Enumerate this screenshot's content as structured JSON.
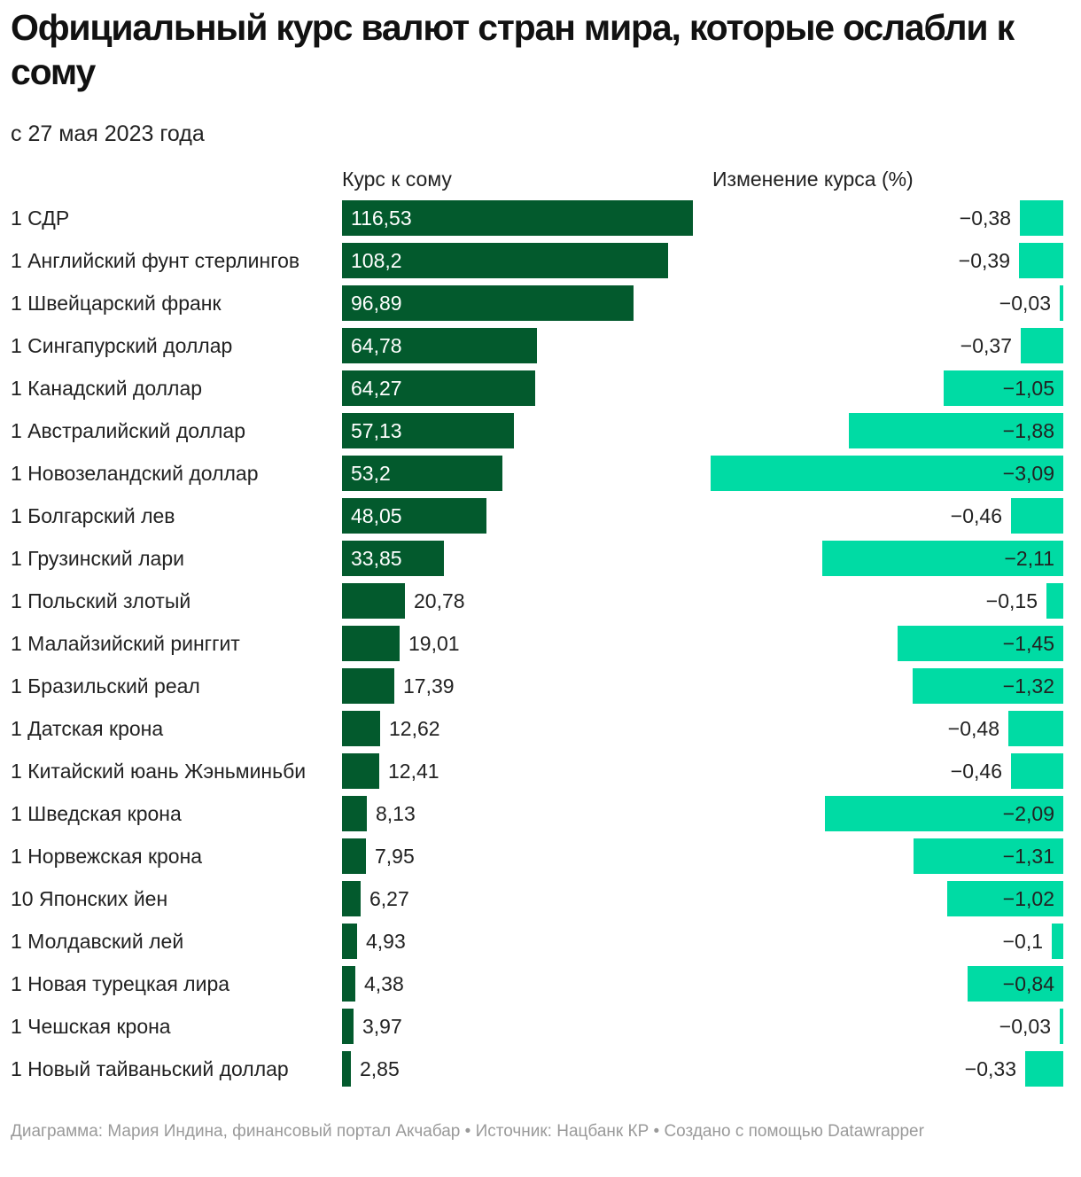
{
  "title": "Официальный курс валют стран мира, которые ослабли к сому",
  "subtitle": "с 27 мая 2023 года",
  "footer": "Диаграмма: Мария Индина, финансовый портал Акчабар • Источник: Нацбанк КР • Создано с помощью Datawrapper",
  "colors": {
    "rate_bar": "#035a2d",
    "change_bar": "#00dba4"
  },
  "chart_data": {
    "type": "bar",
    "orientation": "horizontal",
    "columns": [
      "Курс к сому",
      "Изменение курса (%)"
    ],
    "categories": [
      "1 СДР",
      "1 Английский фунт стерлингов",
      "1 Швейцарский франк",
      "1 Сингапурский доллар",
      "1 Канадский доллар",
      "1 Австралийский доллар",
      "1 Новозеландский доллар",
      "1 Болгарский лев",
      "1 Грузинский лари",
      "1 Польский злотый",
      "1 Малайзийский ринггит",
      "1 Бразильский реал",
      "1 Датская крона",
      "1 Китайский юань Жэньминьби",
      "1 Шведская крона",
      "1 Норвежская крона",
      "10 Японских йен",
      "1 Молдавский лей",
      "1 Новая турецкая лира",
      "1 Чешская крона",
      "1 Новый тайваньский доллар"
    ],
    "series": [
      {
        "name": "Курс к сому",
        "values": [
          116.53,
          108.2,
          96.89,
          64.78,
          64.27,
          57.13,
          53.2,
          48.05,
          33.85,
          20.78,
          19.01,
          17.39,
          12.62,
          12.41,
          8.13,
          7.95,
          6.27,
          4.93,
          4.38,
          3.97,
          2.85
        ],
        "labels": [
          "116,53",
          "108,2",
          "96,89",
          "64,78",
          "64,27",
          "57,13",
          "53,2",
          "48,05",
          "33,85",
          "20,78",
          "19,01",
          "17,39",
          "12,62",
          "12,41",
          "8,13",
          "7,95",
          "6,27",
          "4,93",
          "4,38",
          "3,97",
          "2,85"
        ]
      },
      {
        "name": "Изменение курса (%)",
        "values": [
          -0.38,
          -0.39,
          -0.03,
          -0.37,
          -1.05,
          -1.88,
          -3.09,
          -0.46,
          -2.11,
          -0.15,
          -1.45,
          -1.32,
          -0.48,
          -0.46,
          -2.09,
          -1.31,
          -1.02,
          -0.1,
          -0.84,
          -0.03,
          -0.33
        ],
        "labels": [
          "−0,38",
          "−0,39",
          "−0,03",
          "−0,37",
          "−1,05",
          "−1,88",
          "−3,09",
          "−0,46",
          "−2,11",
          "−0,15",
          "−1,45",
          "−1,32",
          "−0,48",
          "−0,46",
          "−2,09",
          "−1,31",
          "−1,02",
          "−0,1",
          "−0,84",
          "−0,03",
          "−0,33"
        ]
      }
    ]
  }
}
